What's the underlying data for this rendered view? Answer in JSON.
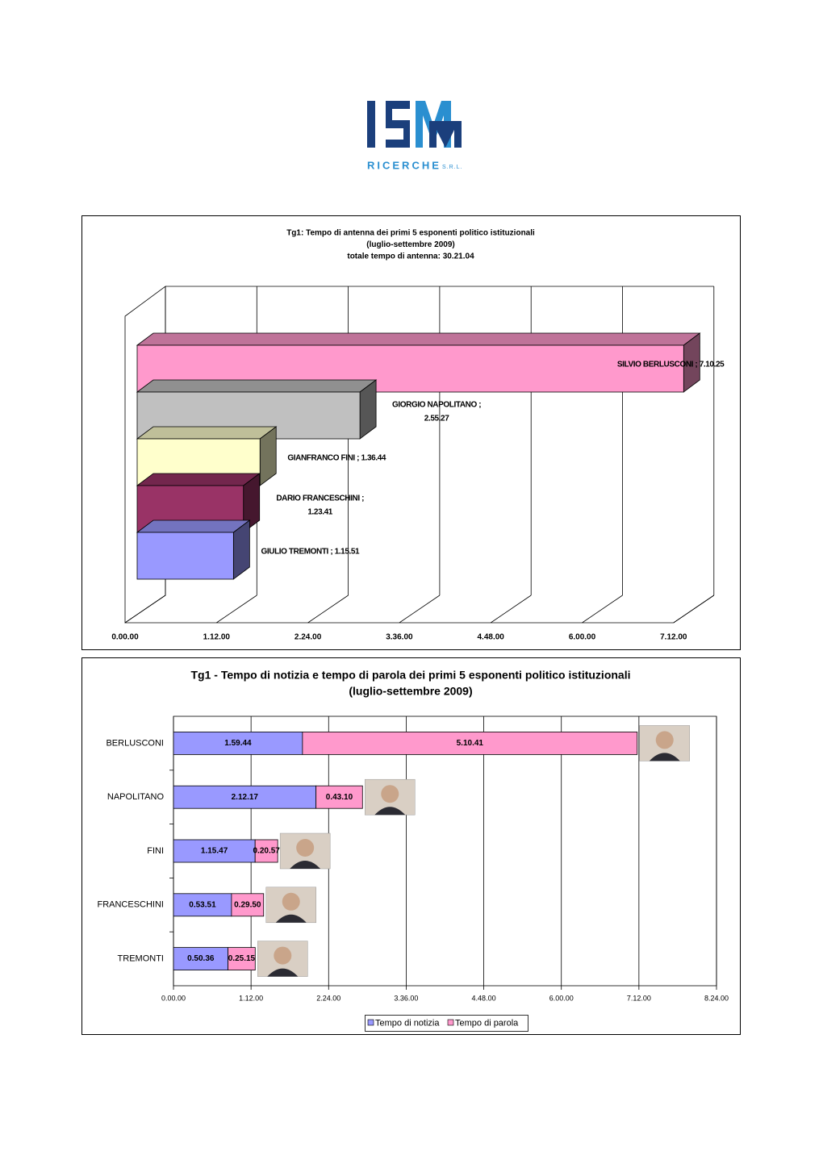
{
  "logo": {
    "name": "RICERCHE",
    "suffix": "S.R.L."
  },
  "chart_data": [
    {
      "type": "bar3d",
      "title": [
        "Tg1: Tempo di antenna dei primi 5 esponenti politico istituzionali",
        "(luglio-settembre 2009)",
        "totale tempo di antenna: 30.21.04"
      ],
      "values": [
        25825,
        10527,
        5804,
        5021,
        4551
      ],
      "value_labels": [
        [
          "SILVIO BERLUSCONI ; 7.10.25"
        ],
        [
          "GIORGIO NAPOLITANO ;",
          "2.55.27"
        ],
        [
          "GIANFRANCO FINI ; 1.36.44"
        ],
        [
          "DARIO FRANCESCHINI  ;",
          "1.23.41"
        ],
        [
          "GIULIO TREMONTI ; 1.15.51"
        ]
      ],
      "colors": [
        "#ff99cc",
        "#c0c0c0",
        "#ffffcc",
        "#993366",
        "#9999ff"
      ],
      "xlim": [
        0,
        25920
      ],
      "xticks": [
        {
          "value": 0,
          "label": "0.00.00"
        },
        {
          "value": 4320,
          "label": "1.12.00"
        },
        {
          "value": 8640,
          "label": "2.24.00"
        },
        {
          "value": 12960,
          "label": "3.36.00"
        },
        {
          "value": 17280,
          "label": "4.48.00"
        },
        {
          "value": 21600,
          "label": "6.00.00"
        },
        {
          "value": 25920,
          "label": "7.12.00"
        }
      ],
      "grid": true
    },
    {
      "type": "stacked-bar",
      "title": [
        "Tg1 - Tempo di notizia e tempo di parola dei primi 5 esponenti politico istituzionali",
        "(luglio-settembre 2009)"
      ],
      "categories": [
        "BERLUSCONI",
        "NAPOLITANO",
        "FINI",
        "FRANCESCHINI",
        "TREMONTI"
      ],
      "series": [
        {
          "name": "Tempo di notizia",
          "color": "#9999ff",
          "values": [
            7184,
            7937,
            4547,
            3231,
            3036
          ],
          "value_labels": [
            "1.59.44",
            "2.12.17",
            "1.15.47",
            "0.53.51",
            "0.50.36"
          ]
        },
        {
          "name": "Tempo di parola",
          "color": "#ff99cc",
          "values": [
            18641,
            2590,
            1257,
            1790,
            1515
          ],
          "value_labels": [
            "5.10.41",
            "0.43.10",
            "0.20.57",
            "0.29.50",
            "0.25.15"
          ]
        }
      ],
      "xlim": [
        0,
        30240
      ],
      "xticks": [
        {
          "value": 0,
          "label": "0.00.00"
        },
        {
          "value": 4320,
          "label": "1.12.00"
        },
        {
          "value": 8640,
          "label": "2.24.00"
        },
        {
          "value": 12960,
          "label": "3.36.00"
        },
        {
          "value": 17280,
          "label": "4.48.00"
        },
        {
          "value": 21600,
          "label": "6.00.00"
        },
        {
          "value": 25920,
          "label": "7.12.00"
        },
        {
          "value": 30240,
          "label": "8.24.00"
        }
      ],
      "grid": true,
      "legend": "bottom"
    }
  ]
}
